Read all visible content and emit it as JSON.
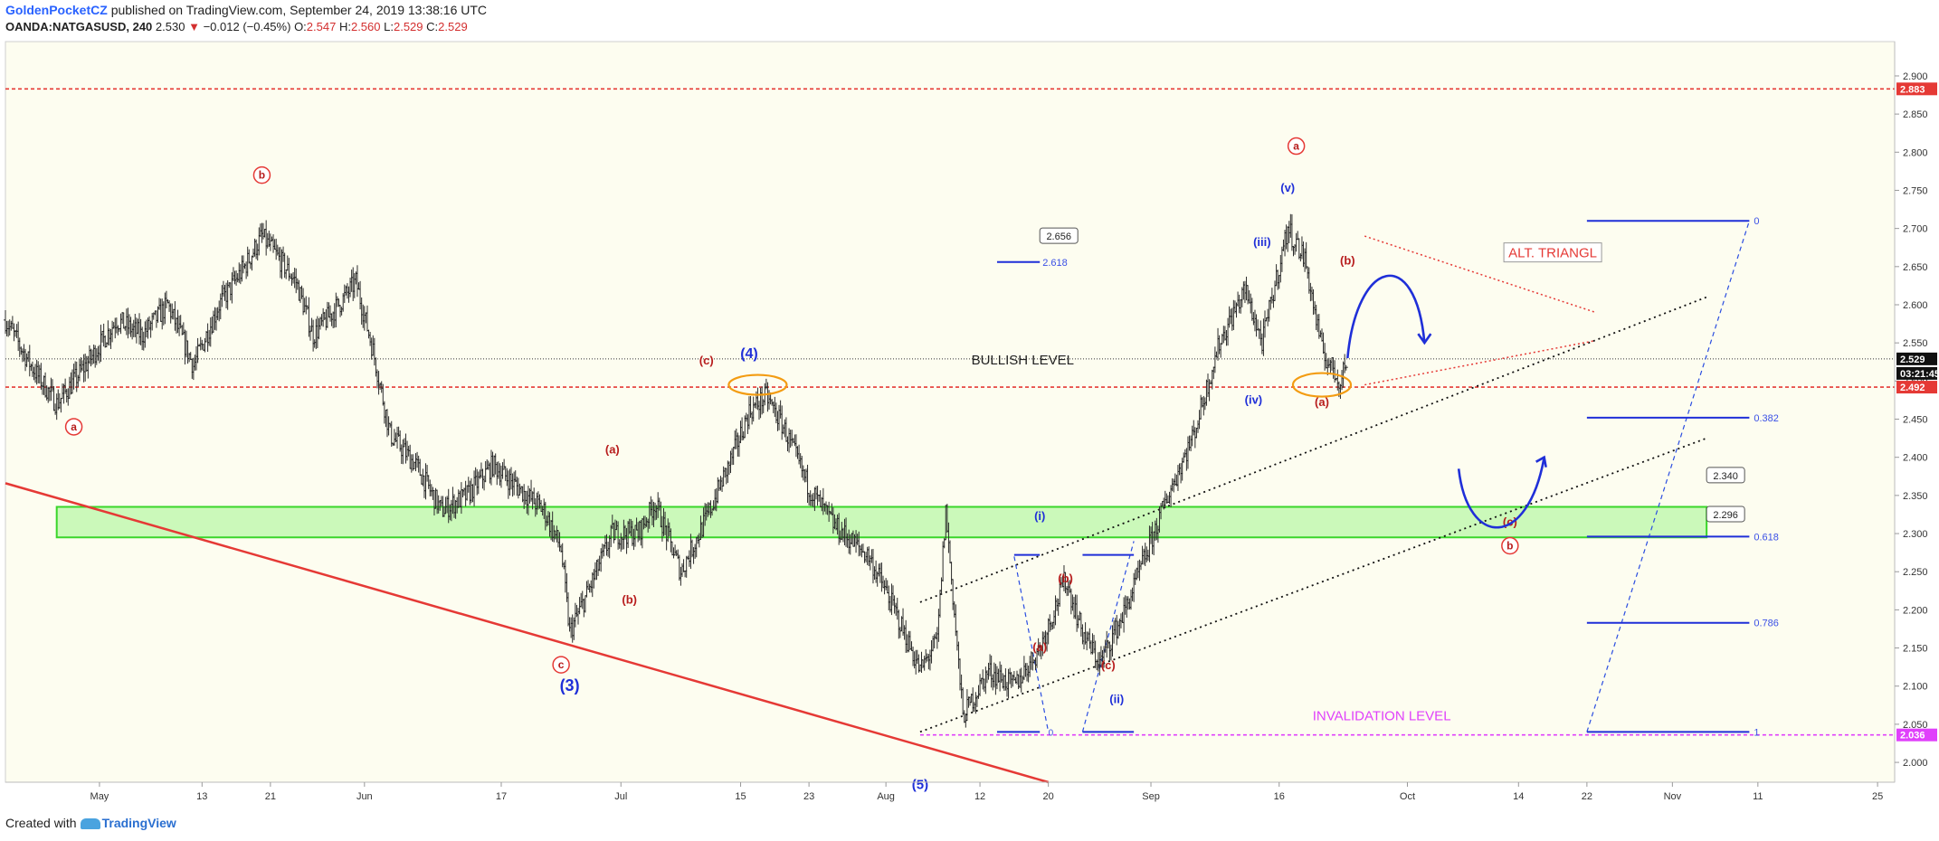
{
  "header": {
    "author": "GoldenPocketCZ",
    "published": "published on TradingView.com, September 24, 2019 13:38:16 UTC",
    "symbol": "OANDA:NATGASUSD, 240",
    "last": "2.530",
    "change_arrow": "▼",
    "change": "−0.012 (−0.45%)",
    "ohlc": {
      "o": "2.547",
      "h": "2.560",
      "l": "2.529",
      "c": "2.529"
    }
  },
  "footer": {
    "created_with": "Created with",
    "brand": "TradingView"
  },
  "colors": {
    "plot_bg": "#fdfdf0",
    "bars": "#2b2b2b",
    "red": "#e53935",
    "blue": "#1f2fd8",
    "dark_red": "#b71c1c",
    "magenta": "#e040fb",
    "green_zone": "#b9f7a8",
    "orange": "#f39c12"
  },
  "chart_data": {
    "type": "ohlc",
    "title": "OANDA:NATGASUSD, 240",
    "x_axis": {
      "ticks": [
        "May",
        "13",
        "21",
        "Jun",
        "17",
        "Jul",
        "15",
        "23",
        "Aug",
        "12",
        "20",
        "Sep",
        "16",
        "Oct",
        "14",
        "22",
        "Nov",
        "11",
        "25"
      ],
      "tick_dates": [
        "2019-05-01",
        "2019-05-13",
        "2019-05-21",
        "2019-06-01",
        "2019-06-17",
        "2019-07-01",
        "2019-07-15",
        "2019-07-23",
        "2019-08-01",
        "2019-08-12",
        "2019-08-20",
        "2019-09-01",
        "2019-09-16",
        "2019-10-01",
        "2019-10-14",
        "2019-10-22",
        "2019-11-01",
        "2019-11-11",
        "2019-11-25"
      ],
      "range": [
        "2019-04-20",
        "2019-11-27"
      ]
    },
    "y_axis": {
      "ticks": [
        "2.900",
        "2.850",
        "2.800",
        "2.750",
        "2.700",
        "2.650",
        "2.600",
        "2.550",
        "2.500",
        "2.450",
        "2.400",
        "2.350",
        "2.300",
        "2.250",
        "2.200",
        "2.150",
        "2.100",
        "2.050",
        "2.000"
      ],
      "range": [
        1.974,
        2.945
      ]
    },
    "price_path": [
      [
        "2019-04-20",
        2.58
      ],
      [
        "2019-04-23",
        2.52
      ],
      [
        "2019-04-26",
        2.47
      ],
      [
        "2019-04-30",
        2.53
      ],
      [
        "2019-05-03",
        2.58
      ],
      [
        "2019-05-06",
        2.56
      ],
      [
        "2019-05-09",
        2.6
      ],
      [
        "2019-05-12",
        2.52
      ],
      [
        "2019-05-15",
        2.6
      ],
      [
        "2019-05-18",
        2.65
      ],
      [
        "2019-05-20",
        2.69
      ],
      [
        "2019-05-24",
        2.63
      ],
      [
        "2019-05-26",
        2.56
      ],
      [
        "2019-05-29",
        2.6
      ],
      [
        "2019-05-31",
        2.63
      ],
      [
        "2019-06-02",
        2.54
      ],
      [
        "2019-06-04",
        2.43
      ],
      [
        "2019-06-07",
        2.39
      ],
      [
        "2019-06-10",
        2.33
      ],
      [
        "2019-06-13",
        2.35
      ],
      [
        "2019-06-16",
        2.39
      ],
      [
        "2019-06-19",
        2.36
      ],
      [
        "2019-06-22",
        2.33
      ],
      [
        "2019-06-24",
        2.28
      ],
      [
        "2019-06-25",
        2.17
      ],
      [
        "2019-06-27",
        2.22
      ],
      [
        "2019-06-30",
        2.3
      ],
      [
        "2019-07-03",
        2.3
      ],
      [
        "2019-07-05",
        2.34
      ],
      [
        "2019-07-08",
        2.25
      ],
      [
        "2019-07-11",
        2.32
      ],
      [
        "2019-07-14",
        2.4
      ],
      [
        "2019-07-16",
        2.46
      ],
      [
        "2019-07-18",
        2.48
      ],
      [
        "2019-07-20",
        2.44
      ],
      [
        "2019-07-23",
        2.36
      ],
      [
        "2019-07-26",
        2.31
      ],
      [
        "2019-07-30",
        2.27
      ],
      [
        "2019-08-02",
        2.2
      ],
      [
        "2019-08-05",
        2.12
      ],
      [
        "2019-08-07",
        2.16
      ],
      [
        "2019-08-08",
        2.33
      ],
      [
        "2019-08-10",
        2.06
      ],
      [
        "2019-08-13",
        2.12
      ],
      [
        "2019-08-16",
        2.1
      ],
      [
        "2019-08-19",
        2.15
      ],
      [
        "2019-08-22",
        2.24
      ],
      [
        "2019-08-24",
        2.17
      ],
      [
        "2019-08-26",
        2.13
      ],
      [
        "2019-08-29",
        2.2
      ],
      [
        "2019-09-01",
        2.29
      ],
      [
        "2019-09-03",
        2.35
      ],
      [
        "2019-09-06",
        2.43
      ],
      [
        "2019-09-09",
        2.55
      ],
      [
        "2019-09-12",
        2.62
      ],
      [
        "2019-09-14",
        2.55
      ],
      [
        "2019-09-17",
        2.7
      ],
      [
        "2019-09-19",
        2.66
      ],
      [
        "2019-09-21",
        2.54
      ],
      [
        "2019-09-23",
        2.5
      ],
      [
        "2019-09-24",
        2.53
      ]
    ],
    "price_labels": [
      {
        "value": 2.883,
        "text": "2.883",
        "color": "#e53935"
      },
      {
        "value": 2.529,
        "text": "2.529",
        "color": "#111111"
      },
      {
        "value": 2.51,
        "text": "03:21:45",
        "color": "#111111"
      },
      {
        "value": 2.492,
        "text": "2.492",
        "color": "#e53935"
      },
      {
        "value": 2.036,
        "text": "2.036",
        "color": "#e040fb"
      }
    ],
    "horizontal_levels": [
      {
        "value": 2.883,
        "style": "red-dotted"
      },
      {
        "value": 2.529,
        "style": "black-dotted",
        "label": "BULLISH LEVEL"
      },
      {
        "value": 2.492,
        "style": "red-dotted"
      },
      {
        "value": 2.036,
        "style": "magenta-dotted",
        "label": "INVALIDATION LEVEL"
      }
    ],
    "zone": {
      "from": 2.295,
      "to": 2.335,
      "x_from": "2019-04-26",
      "x_to": "2019-11-05"
    },
    "fib_levels": [
      {
        "value": 2.71,
        "label": "0"
      },
      {
        "value": 2.452,
        "label": "0.382"
      },
      {
        "value": 2.296,
        "label": "0.618"
      },
      {
        "value": 2.183,
        "label": "0.786"
      },
      {
        "value": 2.04,
        "label": "1"
      }
    ],
    "callouts": [
      "2.656",
      "2.340",
      "2.296"
    ],
    "fib_small": "2.618",
    "small_zero": "0",
    "alt_triangle": "ALT. TRIANGL",
    "wave_labels": {
      "circled": [
        "a",
        "b",
        "c",
        "a",
        "b"
      ],
      "red": [
        "(a)",
        "(b)",
        "(c)",
        "(a)",
        "(b)",
        "(c)",
        "(b)",
        "(a)",
        "(c)"
      ],
      "blue": [
        "(3)",
        "(4)",
        "(5)",
        "(i)",
        "(ii)",
        "(iii)",
        "(iv)",
        "(v)"
      ]
    }
  }
}
